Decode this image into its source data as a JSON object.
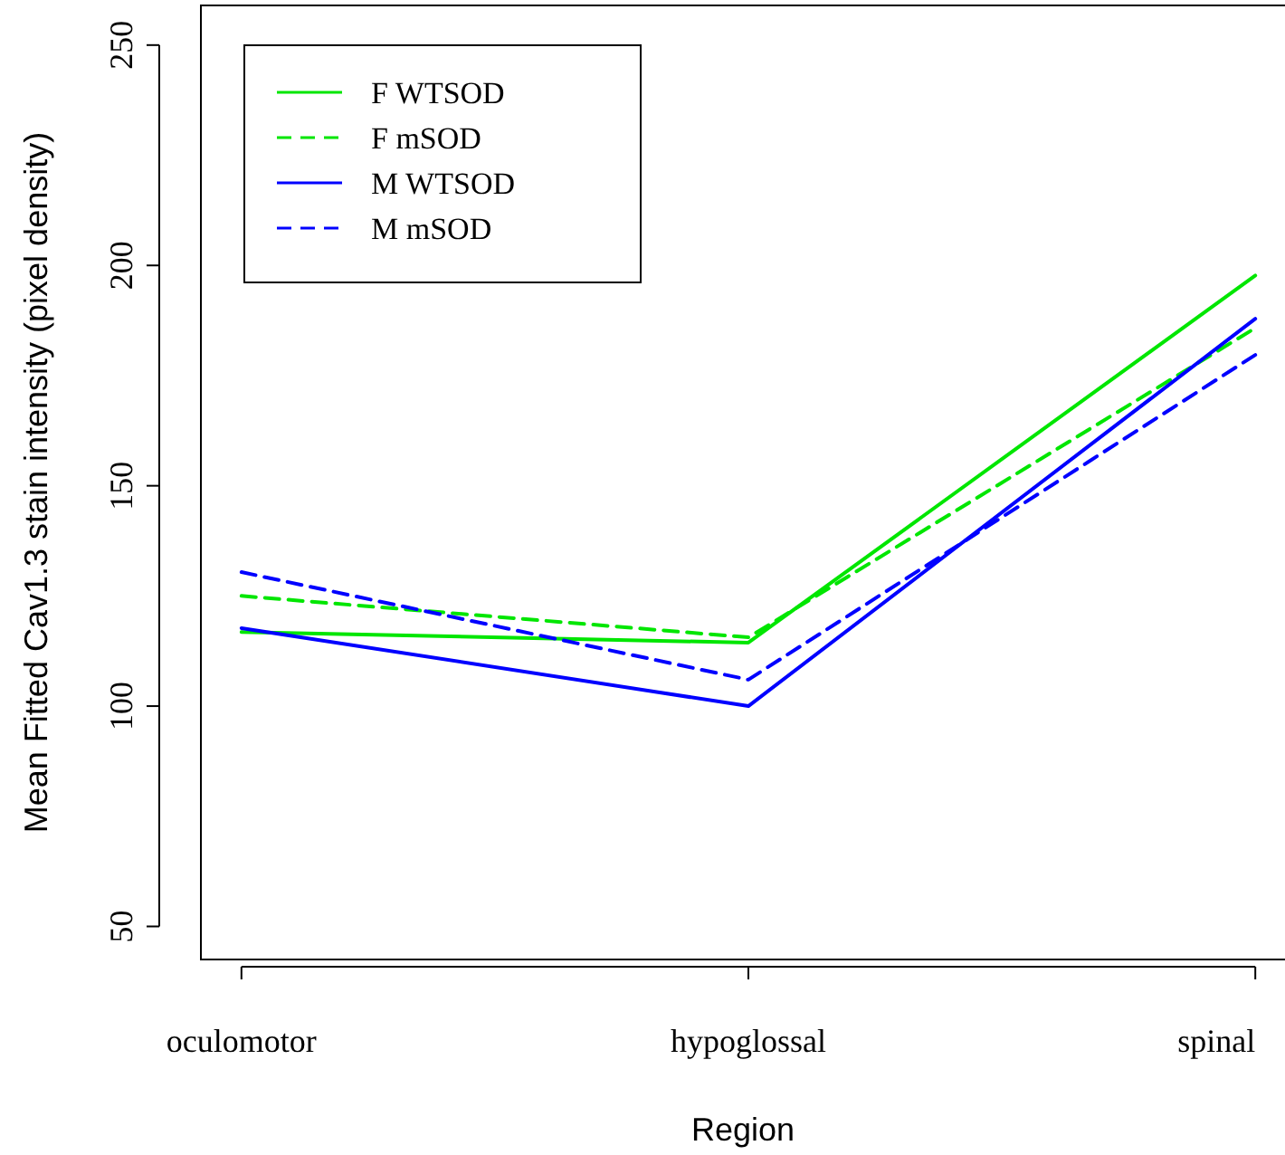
{
  "chart_data": {
    "type": "line",
    "xlabel": "Region",
    "ylabel": "Mean Fitted Cav1.3 stain intensity (pixel density)",
    "categories": [
      "oculomotor",
      "hypoglossal",
      "spinal"
    ],
    "ylim": [
      42.5,
      259
    ],
    "yticks": [
      50,
      100,
      150,
      200,
      250
    ],
    "legend": "top left",
    "grid": false,
    "marker": "none",
    "series": [
      {
        "name": "F WTSOD",
        "color": "#00e600",
        "line_style": "solid",
        "values": [
          116.8,
          114.4,
          197.7
        ]
      },
      {
        "name": "F mSOD",
        "color": "#00e600",
        "line_style": "dashed",
        "values": [
          125,
          115.6,
          185.8
        ]
      },
      {
        "name": "M WTSOD",
        "color": "#0000ff",
        "line_style": "solid",
        "values": [
          117.7,
          100,
          187.9
        ]
      },
      {
        "name": "M mSOD",
        "color": "#0000ff",
        "line_style": "dashed",
        "values": [
          130.4,
          106,
          179.7
        ]
      }
    ]
  }
}
